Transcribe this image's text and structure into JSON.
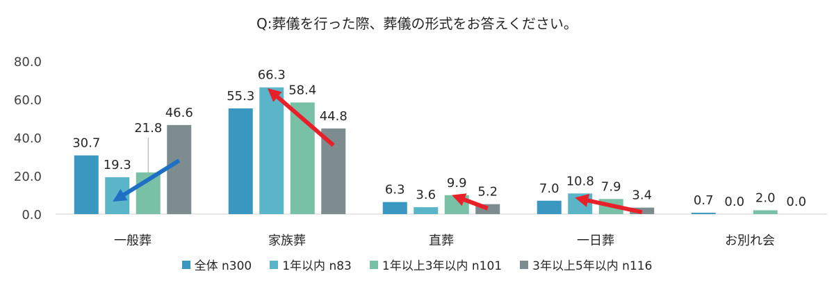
{
  "chart_data": {
    "type": "bar",
    "title": "Q:葬儀を行った際、葬儀の形式をお答えください。",
    "categories": [
      "一般葬",
      "家族葬",
      "直葬",
      "一日葬",
      "お別れ会"
    ],
    "series": [
      {
        "name": "全体 n300",
        "color": "#3a97bf",
        "values": [
          30.7,
          55.3,
          6.3,
          7.0,
          0.7
        ]
      },
      {
        "name": "1年以内 n83",
        "color": "#5ab5c9",
        "values": [
          19.3,
          66.3,
          3.6,
          10.8,
          0.0
        ]
      },
      {
        "name": "1年以上3年以内 n101",
        "color": "#79c1a6",
        "values": [
          21.8,
          58.4,
          9.9,
          7.9,
          2.0
        ]
      },
      {
        "name": "3年以上5年以内 n116",
        "color": "#7d8c8f",
        "values": [
          46.6,
          44.8,
          5.2,
          3.4,
          0.0
        ]
      }
    ],
    "yticks": [
      "80.0",
      "60.0",
      "40.0",
      "20.0",
      "0.0"
    ],
    "ylim": [
      0,
      80
    ],
    "grid": false,
    "legend": "bottom",
    "arrows": [
      {
        "color": "#1f6fc5",
        "from": {
          "category": 0,
          "series": 3,
          "value": 28
        },
        "to": {
          "category": 0,
          "series": 1,
          "value": 8
        }
      },
      {
        "color": "#e8202a",
        "from": {
          "category": 1,
          "series": 3,
          "value": 36
        },
        "to": {
          "category": 1,
          "series": 1,
          "value": 64
        }
      },
      {
        "color": "#e8202a",
        "from": {
          "category": 2,
          "series": 3,
          "value": 3
        },
        "to": {
          "category": 2,
          "series": 2,
          "value": 9
        }
      },
      {
        "color": "#e8202a",
        "from": {
          "category": 3,
          "series": 3,
          "value": 1
        },
        "to": {
          "category": 3,
          "series": 1,
          "value": 8
        }
      }
    ]
  }
}
